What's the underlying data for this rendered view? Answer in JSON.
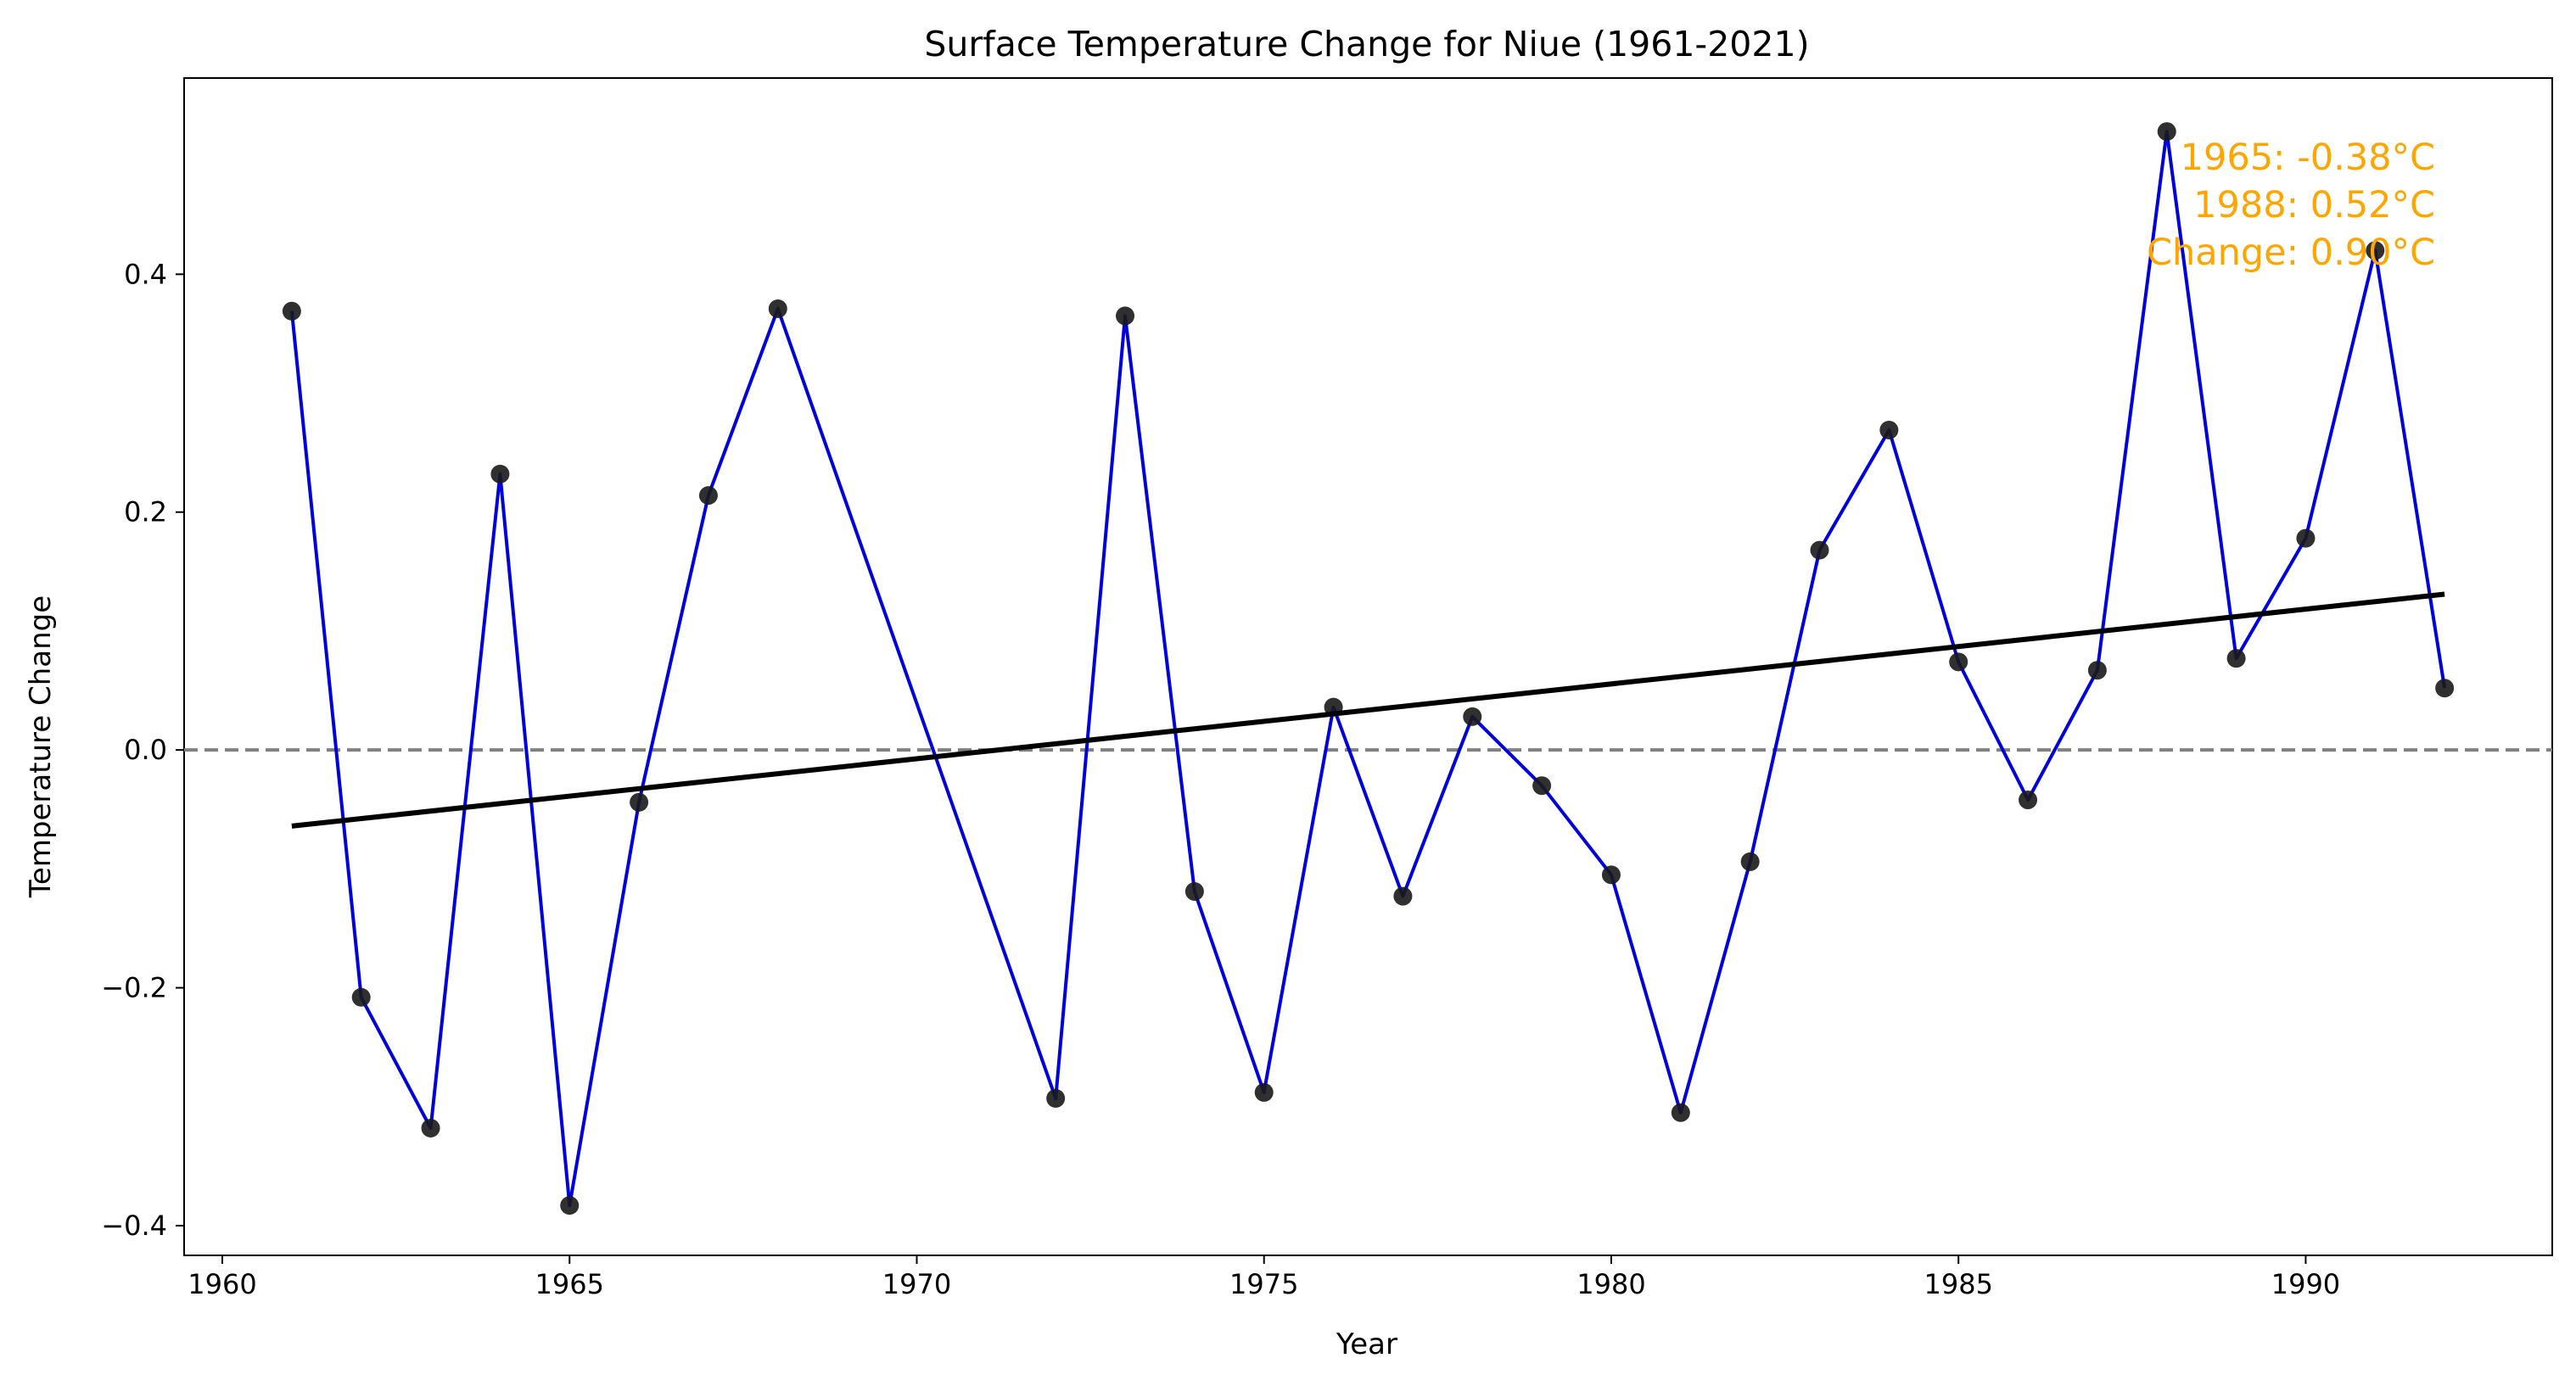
{
  "chart_data": {
    "type": "line",
    "title": "Surface Temperature Change for Niue (1961-2021)",
    "xlabel": "Year",
    "ylabel": "Temperature Change",
    "xlim": [
      1959.45,
      1993.55
    ],
    "ylim": [
      -0.425,
      0.565
    ],
    "x_ticks": [
      1960,
      1965,
      1970,
      1975,
      1980,
      1985,
      1990
    ],
    "y_ticks": [
      -0.4,
      -0.2,
      0.0,
      0.2,
      0.4
    ],
    "y_tick_labels": [
      "−0.4",
      "−0.2",
      "0.0",
      "0.2",
      "0.4"
    ],
    "grid": false,
    "series": [
      {
        "x": [
          1961,
          1962,
          1963,
          1964,
          1965,
          1966,
          1967,
          1968,
          1972,
          1973,
          1974,
          1975,
          1976,
          1977,
          1978,
          1979,
          1980,
          1981,
          1982,
          1983,
          1984,
          1985,
          1986,
          1987,
          1988,
          1989,
          1990,
          1991,
          1992
        ],
        "values": [
          0.369,
          -0.208,
          -0.318,
          0.232,
          -0.383,
          -0.044,
          0.214,
          0.371,
          -0.293,
          0.365,
          -0.119,
          -0.288,
          0.036,
          -0.123,
          0.028,
          -0.03,
          -0.105,
          -0.305,
          -0.094,
          0.168,
          0.269,
          0.074,
          -0.042,
          0.067,
          0.52,
          0.077,
          0.178,
          0.42,
          0.052
        ]
      }
    ],
    "trend_line": {
      "x": [
        1961,
        1992
      ],
      "values": [
        -0.064,
        0.131
      ]
    },
    "reference_line": {
      "y": 0.0
    },
    "annotations": [
      "1965: -0.38°C",
      "1988: 0.52°C",
      "Change: 0.90°C"
    ],
    "colors": {
      "line": "#0000dd",
      "marker": "#1a1a1a",
      "trend": "#000000",
      "reference": "#808080",
      "annotation": "#ffa500"
    }
  }
}
